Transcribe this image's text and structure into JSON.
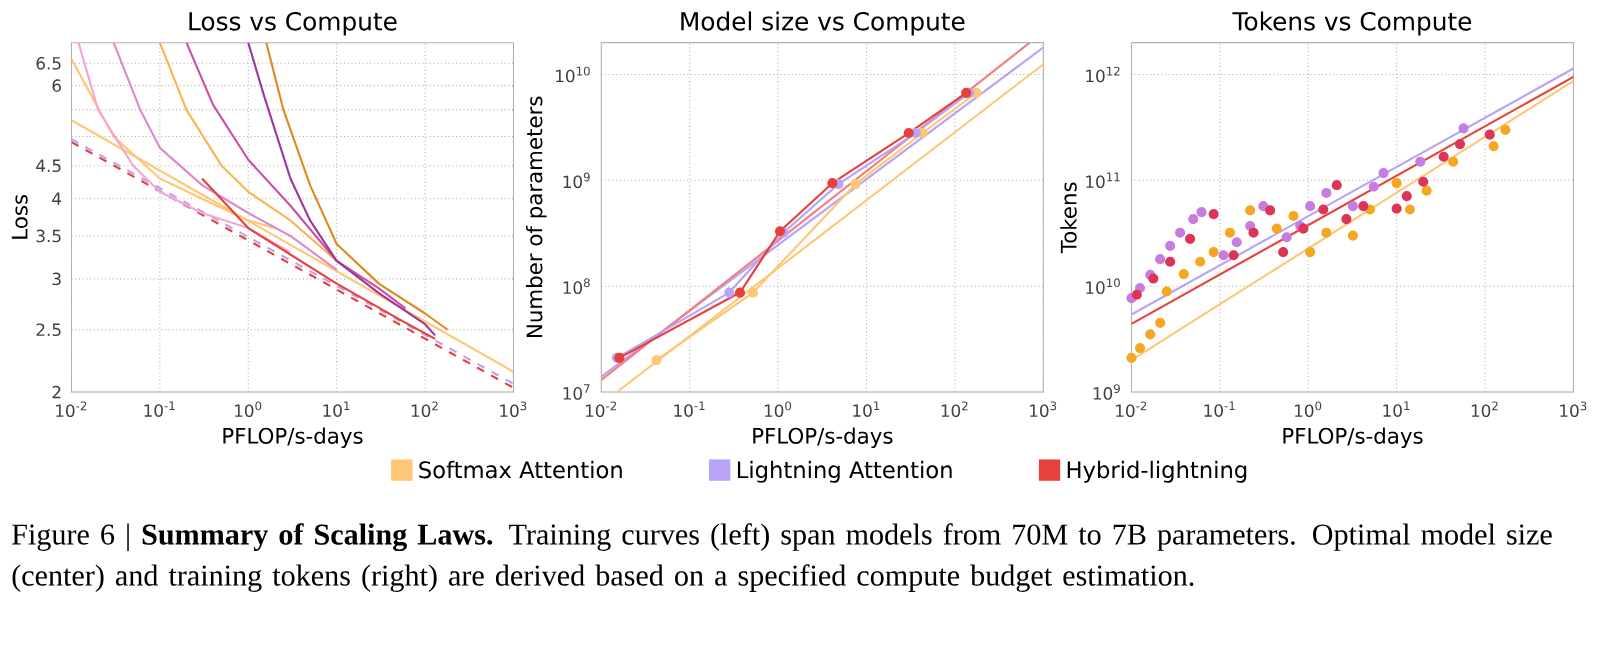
{
  "chart_data": [
    {
      "type": "line",
      "title": "Loss vs Compute",
      "xlabel": "PFLOP/s-days",
      "ylabel": "Loss",
      "log": "xy",
      "grid": true,
      "xlim": [
        0.01,
        1000
      ],
      "ylim": [
        2,
        7
      ],
      "xticks": [
        {
          "value": 0.01,
          "label": "10$^{-2}$"
        },
        {
          "value": 0.1,
          "label": "10$^{-1}$"
        },
        {
          "value": 1,
          "label": "10$^{0}$"
        },
        {
          "value": 10,
          "label": "10$^{1}$"
        },
        {
          "value": 100,
          "label": "10$^{2}$"
        },
        {
          "value": 1000,
          "label": "10$^{3}$"
        }
      ],
      "yticks": [
        2,
        2.5,
        3,
        3.5,
        4,
        4.5,
        {
          "value": 5,
          "label": null
        },
        {
          "value": 5.5,
          "label": null
        },
        6,
        6.5
      ],
      "series": [
        {
          "color": "#fdc776",
          "x": [
            0.01,
            1000
          ],
          "values": [
            5.3,
            2.15
          ]
        },
        {
          "color": "#b9a3f5",
          "line_style": "dashed",
          "x": [
            0.01,
            1000
          ],
          "values": [
            4.95,
            2.06
          ]
        },
        {
          "color": "#e8403a",
          "line_style": "dashed",
          "x": [
            0.01,
            1000
          ],
          "values": [
            4.9,
            2.03
          ]
        },
        {
          "color": "#fdc776",
          "x": [
            0.01,
            0.03,
            0.1,
            0.3,
            1,
            2
          ],
          "values": [
            6.6,
            5.0,
            4.3,
            4.0,
            3.7,
            3.6
          ]
        },
        {
          "color": "#f4a6d7",
          "x": [
            0.012,
            0.02,
            0.05,
            0.1,
            0.3,
            1,
            3
          ],
          "values": [
            7.0,
            5.5,
            4.5,
            4.1,
            3.8,
            3.6,
            3.3
          ]
        },
        {
          "color": "#d98bd0",
          "x": [
            0.03,
            0.06,
            0.1,
            0.3,
            1,
            3,
            10
          ],
          "values": [
            7.0,
            5.5,
            4.8,
            4.2,
            3.8,
            3.5,
            3.1
          ]
        },
        {
          "color": "#fbb44e",
          "x": [
            0.1,
            0.2,
            0.5,
            1,
            3,
            10,
            20
          ],
          "values": [
            7.0,
            5.5,
            4.5,
            4.1,
            3.7,
            3.2,
            3.0
          ]
        },
        {
          "color": "#cc4fa8",
          "x": [
            0.2,
            0.4,
            1,
            3,
            10,
            30,
            60
          ],
          "values": [
            7.0,
            5.6,
            4.6,
            3.9,
            3.2,
            2.9,
            2.7
          ]
        },
        {
          "color": "#9c3a9a",
          "x": [
            1,
            1.5,
            3,
            5,
            10,
            30,
            100,
            130
          ],
          "values": [
            7.0,
            5.8,
            4.3,
            3.7,
            3.2,
            2.85,
            2.55,
            2.45
          ]
        },
        {
          "color": "#e08a1e",
          "x": [
            1.6,
            2.5,
            5,
            10,
            30,
            100,
            180
          ],
          "values": [
            7.0,
            5.5,
            4.2,
            3.4,
            2.95,
            2.65,
            2.5
          ]
        },
        {
          "color": "#e8403a",
          "x": [
            0.3,
            1,
            10,
            50,
            130
          ],
          "values": [
            4.3,
            3.6,
            2.95,
            2.6,
            2.42
          ]
        }
      ]
    },
    {
      "type": "line",
      "title": "Model size vs Compute",
      "xlabel": "PFLOP/s-days",
      "ylabel": "Number of parameters",
      "log": "xy",
      "grid": true,
      "legend": "bottom",
      "annotations": [
        "Figure 6 | **Summary of Scaling Laws.** Training curves (left) span models from 70M to 7B parameters. Optimal model size (center) and training tokens (right) are derived based on a specified compute budget estimation."
      ],
      "xlim": [
        0.01,
        1000
      ],
      "ylim": [
        10000000,
        20000000000
      ],
      "xticks": [
        {
          "value": 0.01,
          "label": "10$^{-2}$"
        },
        {
          "value": 0.1,
          "label": "10$^{-1}$"
        },
        {
          "value": 1,
          "label": "10$^{0}$"
        },
        {
          "value": 10,
          "label": "10$^{1}$"
        },
        {
          "value": 100,
          "label": "10$^{2}$"
        },
        {
          "value": 1000,
          "label": "10$^{3}$"
        }
      ],
      "yticks": [
        {
          "value": 10000000,
          "label": "10$^{7}$"
        },
        {
          "value": 100000000,
          "label": "10$^{8}$"
        },
        {
          "value": 1000000000,
          "label": "10$^{9}$"
        },
        {
          "value": 10000000000,
          "label": "10$^{10}$"
        }
      ],
      "series": [
        {
          "color": "#fdc776",
          "x": [
            0.015,
            1000
          ],
          "values": [
            10000000,
            12500000000
          ]
        },
        {
          "color": "#b9a3f5",
          "x": [
            0.01,
            1000
          ],
          "values": [
            14000000,
            18000000000
          ]
        },
        {
          "color": "#f08080",
          "x": [
            0.01,
            700
          ],
          "values": [
            13000000,
            20000000000
          ]
        },
        {
          "name": "Softmax Attention",
          "color": "#fdc776",
          "marker": "circle",
          "x": [
            0.042,
            0.52,
            7.5,
            43,
            175
          ],
          "values": [
            20000000,
            87000000,
            920000000,
            2800000000,
            6700000000
          ]
        },
        {
          "name": "Lightning Attention",
          "color": "#b9a3f5",
          "marker": "circle",
          "x": [
            0.015,
            0.28,
            1.15,
            4.8,
            36,
            145
          ],
          "values": [
            21000000,
            87000000,
            320000000,
            920000000,
            2800000000,
            6700000000
          ]
        },
        {
          "name": "Hybrid-lightning",
          "color": "#e8403a",
          "marker": "circle",
          "x": [
            0.016,
            0.37,
            1.05,
            4.1,
            30,
            134
          ],
          "values": [
            21000000,
            87000000,
            330000000,
            940000000,
            2800000000,
            6700000000
          ]
        }
      ]
    },
    {
      "type": "scatter",
      "title": "Tokens vs Compute",
      "xlabel": "PFLOP/s-days",
      "ylabel": "Tokens",
      "log": "xy",
      "grid": true,
      "marker": "circle",
      "xlim": [
        0.01,
        1000
      ],
      "ylim": [
        1000000000,
        2000000000000
      ],
      "xticks": [
        {
          "value": 0.01,
          "label": "10$^{-2}$"
        },
        {
          "value": 0.1,
          "label": "10$^{-1}$"
        },
        {
          "value": 1,
          "label": "10$^{0}$"
        },
        {
          "value": 10,
          "label": "10$^{1}$"
        },
        {
          "value": 100,
          "label": "10$^{2}$"
        },
        {
          "value": 1000,
          "label": "10$^{3}$"
        }
      ],
      "yticks": [
        {
          "value": 1000000000,
          "label": "10$^{9}$"
        },
        {
          "value": 10000000000,
          "label": "10$^{10}$"
        },
        {
          "value": 100000000000,
          "label": "10$^{11}$"
        },
        {
          "value": 1000000000000,
          "label": "10$^{12}$"
        }
      ],
      "series": [
        {
          "type": "line",
          "marker": "none",
          "color": "#fdc776",
          "x": [
            0.01,
            1000
          ],
          "values": [
            2000000000,
            870000000000
          ]
        },
        {
          "type": "line",
          "marker": "none",
          "color": "#b9a3f5",
          "x": [
            0.01,
            1000
          ],
          "values": [
            5400000000,
            1140000000000
          ]
        },
        {
          "type": "line",
          "marker": "none",
          "color": "#e8403a",
          "x": [
            0.01,
            1000
          ],
          "values": [
            4400000000,
            950000000000
          ]
        },
        {
          "color": "#f5a623",
          "x": [
            0.01,
            0.0125,
            0.0163,
            0.0211,
            0.025,
            0.039,
            0.06,
            0.085,
            0.13,
            0.22,
            0.44,
            0.68,
            1.05,
            1.6,
            3.2,
            5.0,
            10.0,
            14.1,
            21.8,
            43.5,
            125,
            170
          ],
          "values": [
            2100000000,
            2600000000,
            3500000000,
            4500000000,
            8900000000,
            13000000000,
            17000000000,
            21000000000,
            32000000000,
            52000000000,
            35000000000,
            46000000000,
            21000000000,
            32000000000,
            30000000000,
            53000000000,
            94000000000,
            53000000000,
            80000000000,
            150000000000,
            210000000000,
            300000000000
          ]
        },
        {
          "color": "#c77ddf",
          "x": [
            0.01,
            0.0125,
            0.0163,
            0.0211,
            0.0274,
            0.0355,
            0.05,
            0.062,
            0.11,
            0.155,
            0.22,
            0.31,
            0.57,
            0.81,
            1.05,
            1.6,
            3.2,
            5.5,
            7.1,
            18.5,
            57
          ],
          "values": [
            7700000000,
            9600000000,
            12800000000,
            18000000000,
            24000000000,
            32000000000,
            43000000000,
            50000000000,
            19600000000,
            26000000000,
            37000000000,
            57000000000,
            29000000000,
            37000000000,
            57000000000,
            76000000000,
            57000000000,
            87000000000,
            117000000000,
            150000000000,
            310000000000
          ]
        },
        {
          "color": "#dc3558",
          "x": [
            0.0115,
            0.0177,
            0.0274,
            0.046,
            0.085,
            0.143,
            0.24,
            0.37,
            0.52,
            0.88,
            1.48,
            2.1,
            2.7,
            4.2,
            10.0,
            13.0,
            20,
            34,
            52,
            113
          ],
          "values": [
            8300000000,
            11800000000,
            17000000000,
            28000000000,
            48000000000,
            19600000000,
            32000000000,
            52000000000,
            21000000000,
            35000000000,
            53000000000,
            90000000000,
            43000000000,
            57000000000,
            54000000000,
            71000000000,
            97000000000,
            167000000000,
            220000000000,
            270000000000
          ]
        }
      ]
    }
  ]
}
